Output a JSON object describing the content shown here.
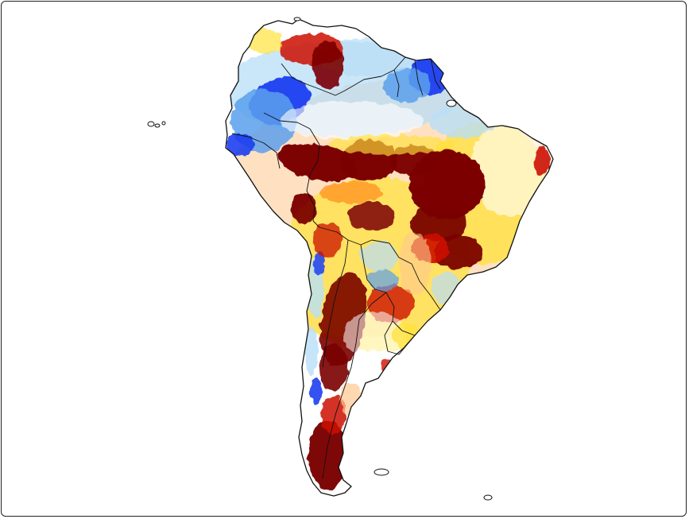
{
  "map": {
    "region": "South America",
    "palette": {
      "dark_red": "#7a0000",
      "red": "#cc1100",
      "orange": "#ff8c1a",
      "light_orange": "#ffc890",
      "yellow": "#ffe23a",
      "white": "#ffffff",
      "light_blue": "#b8def7",
      "mid_blue": "#5aa0ec",
      "blue": "#1c3ef0",
      "coast": "#111111"
    }
  }
}
